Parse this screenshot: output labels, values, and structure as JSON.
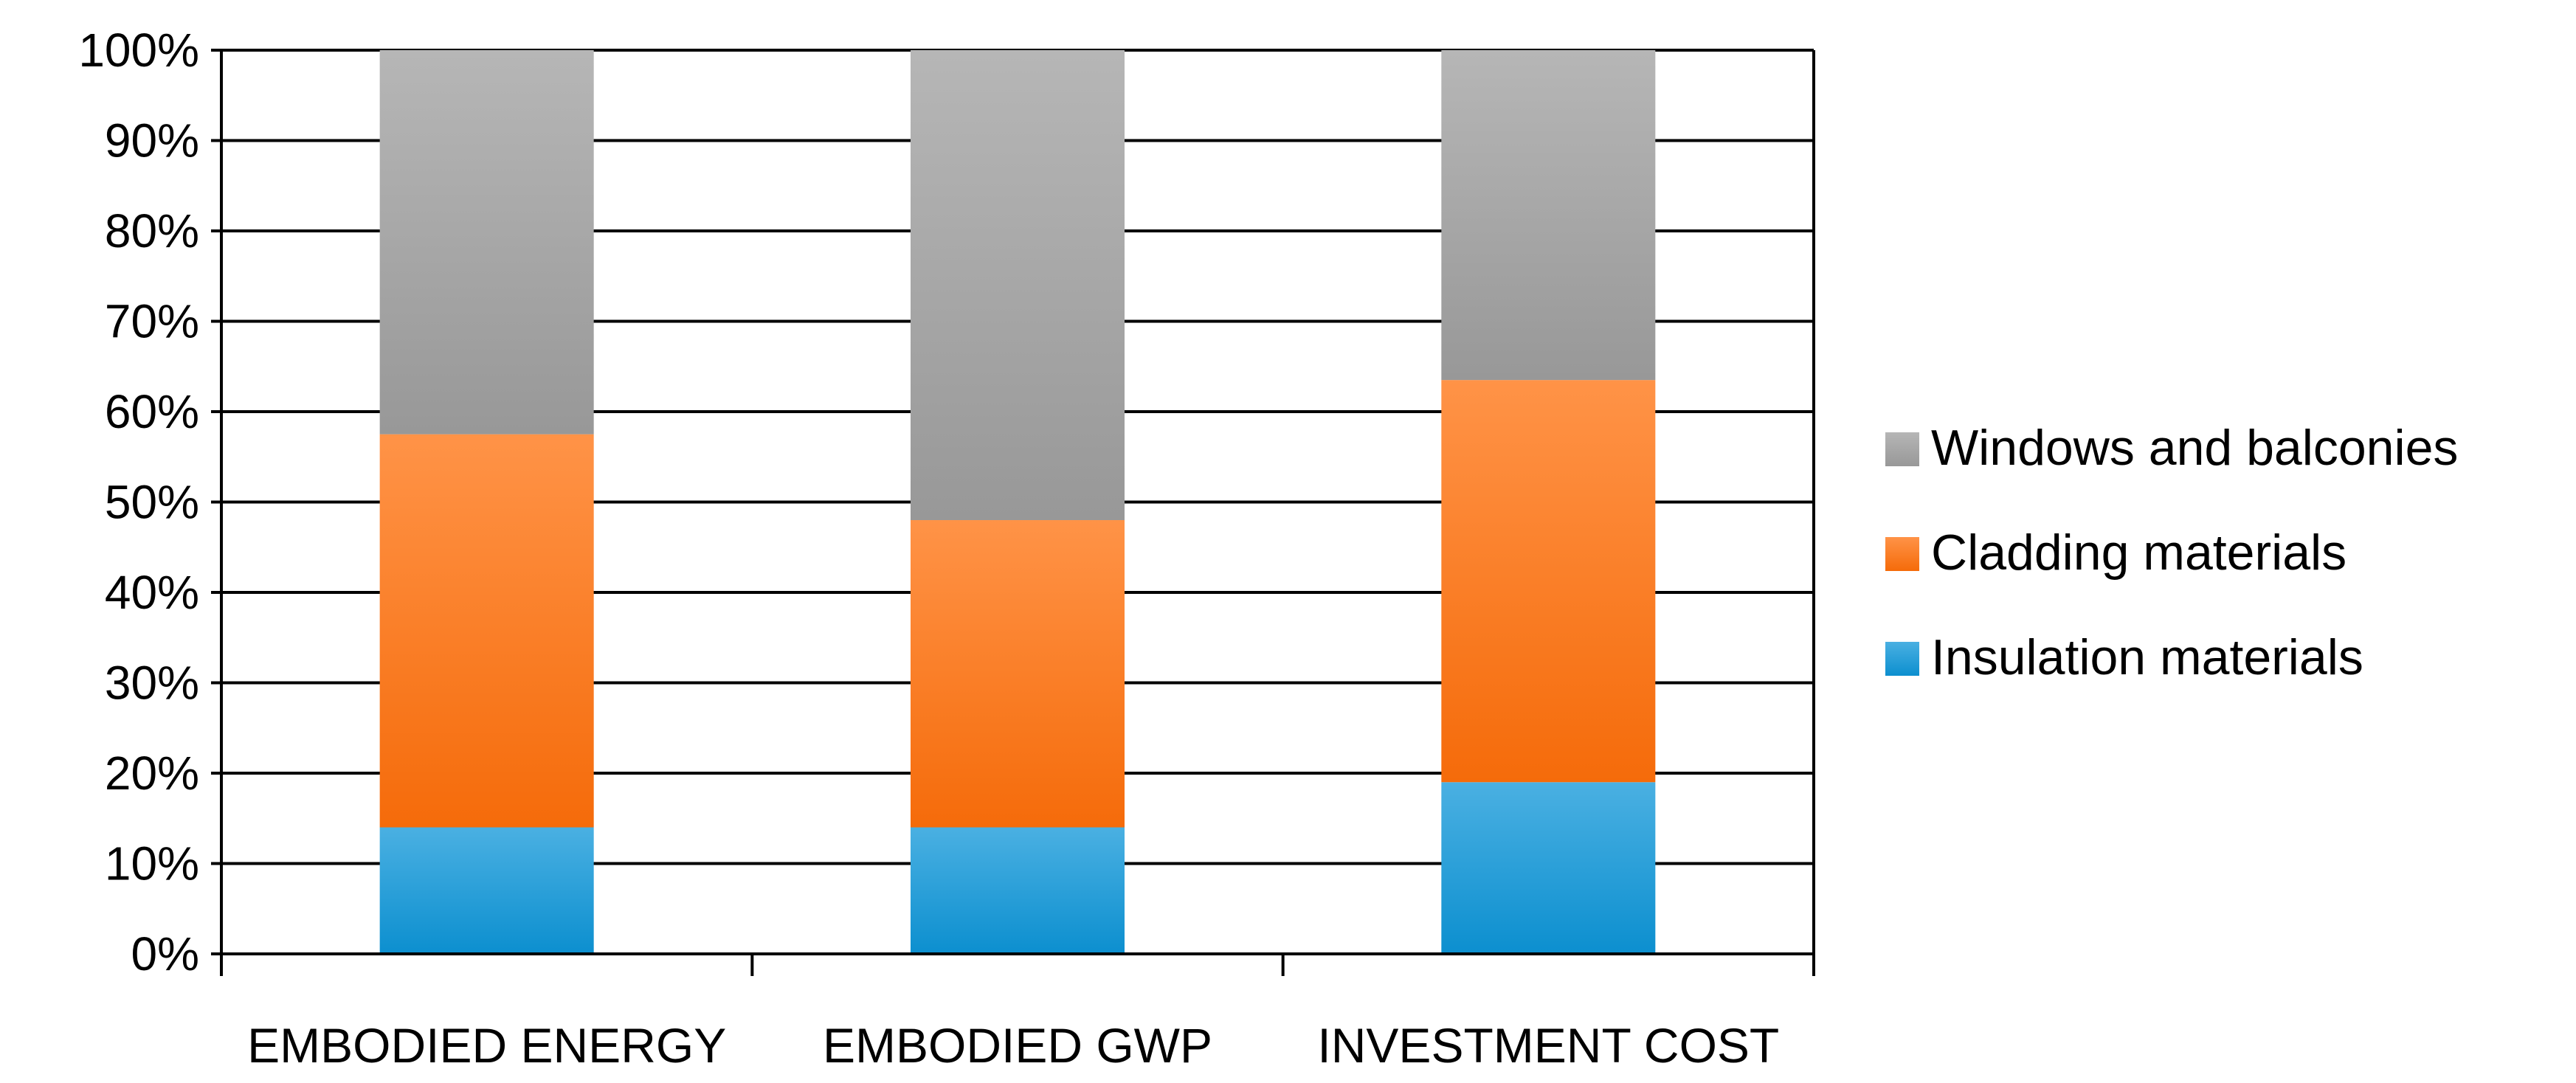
{
  "chart_data": {
    "type": "bar",
    "stacked": true,
    "categories": [
      "EMBODIED ENERGY",
      "EMBODIED GWP",
      "INVESTMENT COST"
    ],
    "series": [
      {
        "name": "Insulation materials",
        "values": [
          14,
          14,
          19
        ],
        "color": "#0d95d8"
      },
      {
        "name": "Cladding materials",
        "values": [
          43.5,
          34,
          44.5
        ],
        "color": "#ff6f0a"
      },
      {
        "name": "Windows and balconies",
        "values": [
          42.5,
          52,
          36.5
        ],
        "color": "#9e9e9e"
      }
    ],
    "legend_order": [
      "Windows and balconies",
      "Cladding materials",
      "Insulation materials"
    ],
    "y_ticks": [
      "0%",
      "10%",
      "20%",
      "30%",
      "40%",
      "50%",
      "60%",
      "70%",
      "80%",
      "90%",
      "100%"
    ],
    "ylim": [
      0,
      100
    ],
    "grid": true,
    "legend_position": "right"
  }
}
